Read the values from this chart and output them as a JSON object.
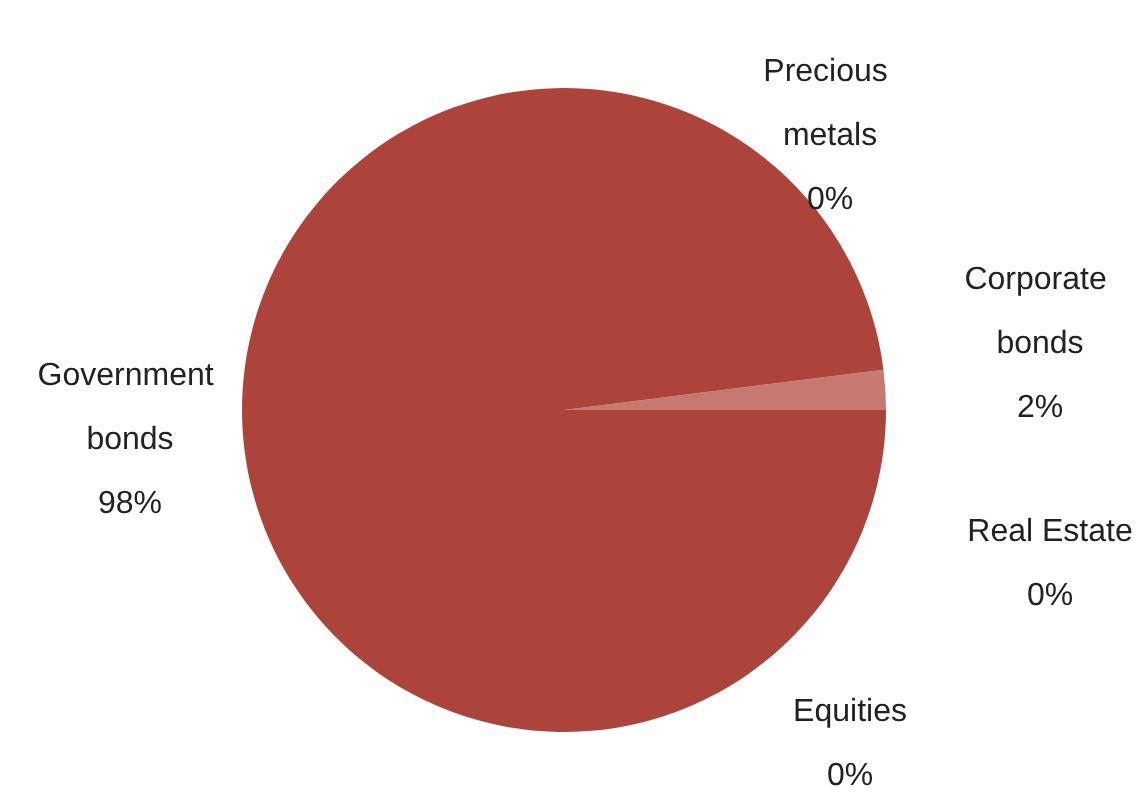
{
  "chart_data": {
    "type": "pie",
    "categories": [
      "Corporate bonds",
      "Real Estate",
      "Equities",
      "Government bonds",
      "Precious metals"
    ],
    "values": [
      2,
      0,
      0,
      98,
      0
    ],
    "colors": [
      "#c8796f",
      "#ad443b",
      "#ad443b",
      "#ad443b",
      "#ad443b"
    ],
    "value_labels": [
      "2%",
      "0%",
      "0%",
      "98%",
      "0%"
    ]
  }
}
